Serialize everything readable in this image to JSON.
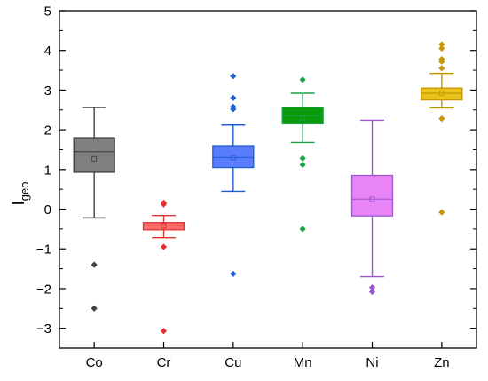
{
  "chart_data": {
    "type": "box",
    "title": "",
    "xlabel": "",
    "ylabel": "I",
    "ylabel_subscript": "geo",
    "ylim": [
      -3.5,
      5
    ],
    "yticks": [
      -3,
      -2,
      -1,
      0,
      1,
      2,
      3,
      4,
      5
    ],
    "yticks_labels": [
      "−3",
      "−2",
      "−1",
      "0",
      "1",
      "2",
      "3",
      "4",
      "5"
    ],
    "categories": [
      "Co",
      "Cr",
      "Cu",
      "Mn",
      "Ni",
      "Zn"
    ],
    "grid": false,
    "legend": "none",
    "series": [
      {
        "category": "Co",
        "color": "#808080",
        "stroke": "#404040",
        "whisker_low": -0.22,
        "q1": 0.93,
        "median": 1.45,
        "q3": 1.8,
        "whisker_high": 2.56,
        "mean": 1.27,
        "outliers": [
          -1.4,
          -2.5
        ]
      },
      {
        "category": "Cr",
        "color": "#ff6b6b",
        "stroke": "#e03030",
        "whisker_low": -0.72,
        "q1": -0.52,
        "median": -0.42,
        "q3": -0.34,
        "whisker_high": -0.16,
        "mean": -0.42,
        "outliers": [
          0.16,
          0.12,
          -0.95,
          -3.07
        ]
      },
      {
        "category": "Cu",
        "color": "#5a7cff",
        "stroke": "#1f5fcf",
        "whisker_low": 0.45,
        "q1": 1.05,
        "median": 1.3,
        "q3": 1.6,
        "whisker_high": 2.12,
        "mean": 1.3,
        "outliers": [
          3.35,
          2.8,
          2.58,
          2.52,
          -1.63
        ]
      },
      {
        "category": "Mn",
        "color": "#0a9a0a",
        "stroke": "#1aa34a",
        "whisker_low": 1.68,
        "q1": 2.15,
        "median": 2.35,
        "q3": 2.57,
        "whisker_high": 2.92,
        "mean": 2.3,
        "outliers": [
          3.26,
          1.28,
          1.12,
          -0.5
        ]
      },
      {
        "category": "Ni",
        "color": "#e884f5",
        "stroke": "#9e55d0",
        "whisker_low": -1.7,
        "q1": -0.17,
        "median": 0.25,
        "q3": 0.85,
        "whisker_high": 2.24,
        "mean": 0.25,
        "outliers": [
          -1.97,
          -2.08
        ]
      },
      {
        "category": "Zn",
        "color": "#e8c319",
        "stroke": "#c89600",
        "whisker_low": 2.55,
        "q1": 2.75,
        "median": 2.92,
        "q3": 3.05,
        "whisker_high": 3.42,
        "mean": 2.92,
        "outliers": [
          4.15,
          4.05,
          3.78,
          3.72,
          3.55,
          2.28,
          -0.08
        ]
      }
    ]
  }
}
